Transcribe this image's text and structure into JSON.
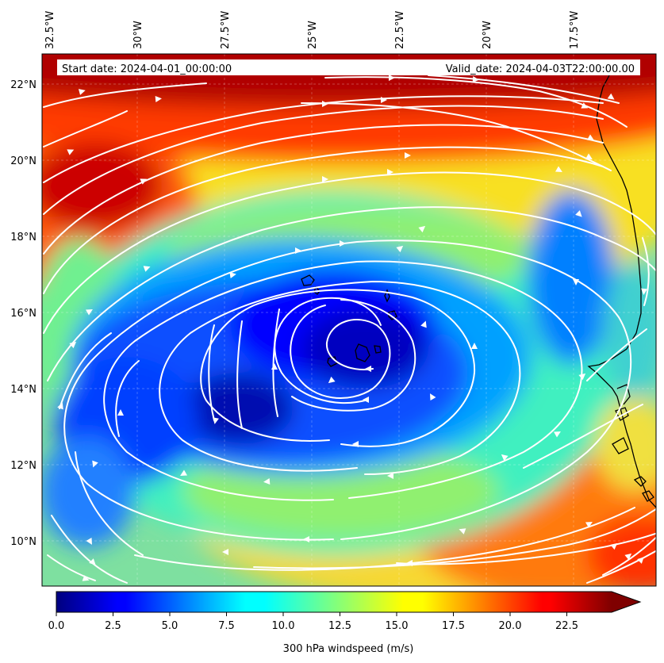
{
  "header": {
    "start_date": "Start date: 2024-04-01_00:00:00",
    "valid_date": "Valid_date: 2024-04-03T22:00:00.00"
  },
  "lon_labels": [
    "32.5°W",
    "30°W",
    "27.5°W",
    "25°W",
    "22.5°W",
    "20°W",
    "17.5°W"
  ],
  "lat_labels": [
    "22°N",
    "20°N",
    "18°N",
    "16°N",
    "14°N",
    "12°N",
    "10°N"
  ],
  "colorbar": {
    "label": "300 hPa windspeed (m/s)",
    "ticks": [
      "0.0",
      "2.5",
      "5.0",
      "7.5",
      "10.0",
      "12.5",
      "15.0",
      "17.5",
      "20.0",
      "22.5"
    ],
    "min": 0,
    "max": 25,
    "extend": "max",
    "colormap": "jet"
  },
  "map": {
    "lon_range": [
      -32.5,
      -15.5
    ],
    "lat_range": [
      8.9,
      22.8
    ],
    "low_center": {
      "lon": -23.2,
      "lat": 14.8
    },
    "streamline_color": "#ffffff",
    "coastline_color": "#000000"
  }
}
